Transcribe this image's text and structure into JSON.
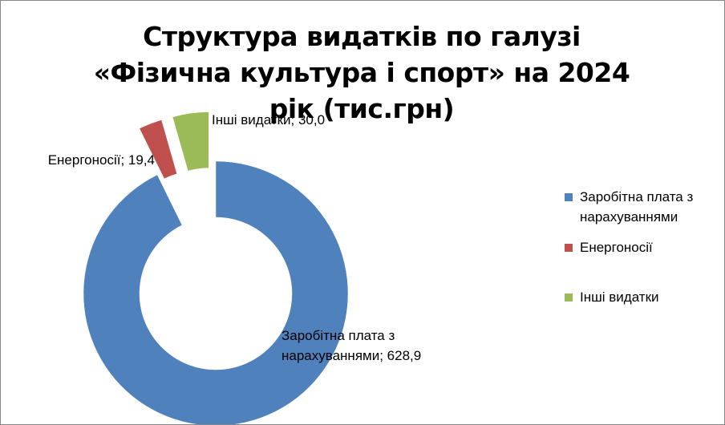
{
  "chart_data": {
    "type": "doughnut",
    "title": "Структура видатків по галузі «Фізична культура і спорт» на 2024 рік (тис.грн)",
    "categories": [
      "Заробітна плата з нарахуваннями",
      "Енергоносії",
      "Інші видатки"
    ],
    "values": [
      628.9,
      19.4,
      30.0
    ],
    "value_labels": [
      "628,9",
      "19,4",
      "30,0"
    ],
    "label_separator": "; ",
    "colors": [
      "#4f81bd",
      "#c0504d",
      "#9bbb59"
    ],
    "legend": "right"
  }
}
